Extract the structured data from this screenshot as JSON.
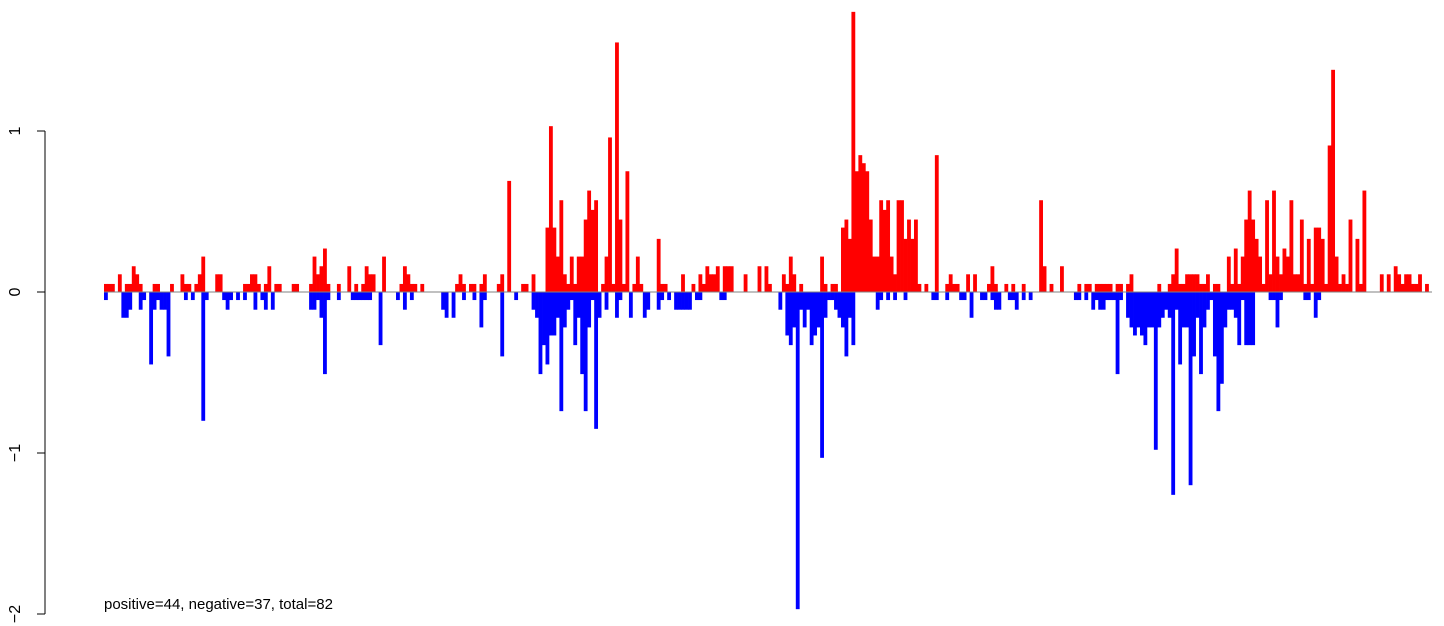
{
  "chart_data": {
    "type": "bar",
    "title": "",
    "xlabel": "",
    "ylabel": "",
    "ylim": [
      -2,
      1.75
    ],
    "yticks": [
      -2,
      -1,
      0,
      1
    ],
    "ytick_labels": [
      "−2",
      "−1",
      "0",
      "1"
    ],
    "annotation": "positive=44, negative=37, total=82",
    "series": [
      {
        "color": "#ff0000",
        "values": [
          0.05,
          0.05,
          0.05,
          0,
          0.11,
          0,
          0.05,
          0.05,
          0.16,
          0.11,
          0.05,
          0,
          0,
          0,
          0.05,
          0.05,
          0,
          0,
          0,
          0.05,
          0,
          0,
          0.11,
          0.05,
          0.05,
          0,
          0.05,
          0.11,
          0.22,
          0,
          0,
          0,
          0.11,
          0.11,
          0,
          0,
          0,
          0,
          0,
          0,
          0.05,
          0.05,
          0.11,
          0.11,
          0.05,
          0,
          0.05,
          0.16,
          0,
          0.05,
          0.05,
          0,
          0,
          0,
          0.05,
          0.05,
          0,
          0,
          0,
          0.05,
          0.22,
          0.11,
          0.16,
          0.27,
          0.05,
          0,
          0,
          0.05,
          0,
          0,
          0.16,
          0,
          0.05,
          0,
          0.05,
          0.16,
          0.11,
          0.11,
          0,
          0,
          0.22,
          0,
          0,
          0,
          0,
          0.05,
          0.16,
          0.11,
          0.05,
          0.05,
          0,
          0.05,
          0,
          0,
          0,
          0,
          0,
          0,
          0,
          0,
          0,
          0.05,
          0.11,
          0.05,
          0,
          0.05,
          0.05,
          0,
          0.05,
          0.11,
          0,
          0,
          0,
          0.05,
          0.11,
          0,
          0.69,
          0,
          0,
          0,
          0.05,
          0.05,
          0,
          0.11,
          0,
          0,
          0,
          0.4,
          1.03,
          0.4,
          0.22,
          0.57,
          0.11,
          0.05,
          0.22,
          0.05,
          0.22,
          0.22,
          0.45,
          0.63,
          0.51,
          0.57,
          0,
          0.05,
          0.22,
          0.96,
          0.05,
          1.55,
          0.45,
          0.05,
          0.75,
          0,
          0.05,
          0.22,
          0.05,
          0,
          0,
          0,
          0,
          0.33,
          0.05,
          0.05,
          0,
          0,
          0,
          0,
          0.11,
          0,
          0,
          0.05,
          0,
          0.11,
          0.05,
          0.16,
          0.11,
          0.11,
          0.16,
          0,
          0.16,
          0.16,
          0.16,
          0,
          0,
          0,
          0.11,
          0,
          0,
          0,
          0.16,
          0,
          0.16,
          0.05,
          0,
          0,
          0,
          0.11,
          0.05,
          0.22,
          0.11,
          0,
          0.05,
          0,
          0,
          0,
          0,
          0,
          0.22,
          0.05,
          0,
          0.05,
          0.05,
          0,
          0.4,
          0.45,
          0.33,
          1.74,
          0.75,
          0.85,
          0.8,
          0.75,
          0.45,
          0.22,
          0.22,
          0.57,
          0.51,
          0.57,
          0.22,
          0.11,
          0.57,
          0.57,
          0.33,
          0.45,
          0.33,
          0.45,
          0.05,
          0,
          0.05,
          0,
          0,
          0.85,
          0,
          0,
          0.05,
          0.11,
          0.05,
          0.05,
          0,
          0,
          0.11,
          0,
          0.11,
          0,
          0,
          0,
          0.05,
          0.16,
          0.05,
          0,
          0,
          0.05,
          0,
          0.05,
          0,
          0,
          0.05,
          0,
          0,
          0,
          0,
          0.57,
          0.16,
          0,
          0.05,
          0,
          0,
          0.16,
          0,
          0,
          0,
          0,
          0.05,
          0,
          0.05,
          0.05,
          0,
          0.05,
          0.05,
          0.05,
          0.05,
          0.05,
          0,
          0.05,
          0.05,
          0,
          0.05,
          0.11,
          0,
          0,
          0,
          0,
          0,
          0,
          0,
          0.05,
          0,
          0,
          0.05,
          0.11,
          0.27,
          0.05,
          0.05,
          0.11,
          0.11,
          0.11,
          0.11,
          0.05,
          0.05,
          0.11,
          0,
          0.05,
          0.05,
          0,
          0,
          0.22,
          0.05,
          0.27,
          0.05,
          0.22,
          0.45,
          0.63,
          0.45,
          0.33,
          0.22,
          0.05,
          0.57,
          0.11,
          0.63,
          0.22,
          0.11,
          0.27,
          0.22,
          0.57,
          0.11,
          0.11,
          0.45,
          0.05,
          0.33,
          0.05,
          0.4,
          0.4,
          0.33,
          0.05,
          0.91,
          1.38,
          0.22,
          0.05,
          0.11,
          0.05,
          0.45,
          0,
          0.33,
          0.05,
          0.63,
          0,
          0,
          0,
          0,
          0.11,
          0,
          0.11,
          0,
          0.16,
          0.11,
          0.05,
          0.11,
          0.11,
          0.05,
          0.05,
          0.11,
          0,
          0.05,
          0
        ]
      },
      {
        "color": "#0000ff",
        "values": [
          -0.05,
          0,
          0,
          0,
          0,
          -0.16,
          -0.16,
          -0.11,
          0,
          0,
          -0.11,
          -0.05,
          0,
          -0.45,
          -0.11,
          -0.05,
          -0.11,
          -0.11,
          -0.4,
          0,
          0,
          0,
          0,
          -0.05,
          0,
          -0.05,
          0,
          0,
          -0.8,
          -0.05,
          0,
          0,
          0,
          0,
          -0.05,
          -0.11,
          -0.05,
          0,
          -0.05,
          0,
          -0.05,
          0,
          0,
          -0.11,
          0,
          -0.05,
          -0.11,
          0,
          -0.11,
          0,
          0,
          0,
          0,
          0,
          0,
          0,
          0,
          0,
          0,
          -0.11,
          -0.11,
          -0.05,
          -0.16,
          -0.51,
          -0.05,
          0,
          0,
          -0.05,
          0,
          0,
          0,
          -0.05,
          -0.05,
          -0.05,
          -0.05,
          -0.05,
          -0.05,
          0,
          0,
          -0.33,
          0,
          0,
          0,
          0,
          -0.05,
          0,
          -0.11,
          0,
          -0.05,
          0,
          0,
          0,
          0,
          0,
          0,
          0,
          0,
          -0.11,
          -0.16,
          0,
          -0.16,
          0,
          0,
          -0.05,
          0,
          0,
          -0.05,
          0,
          -0.22,
          -0.05,
          0,
          0,
          0,
          0,
          -0.4,
          0,
          0,
          0,
          -0.05,
          0,
          0,
          0,
          0,
          -0.11,
          -0.16,
          -0.51,
          -0.33,
          -0.45,
          -0.27,
          -0.27,
          -0.16,
          -0.74,
          -0.22,
          -0.11,
          -0.05,
          -0.33,
          -0.16,
          -0.51,
          -0.74,
          -0.22,
          -0.05,
          -0.85,
          -0.16,
          0,
          -0.11,
          0,
          0,
          -0.16,
          -0.05,
          0,
          0,
          -0.16,
          0,
          0,
          0,
          -0.16,
          -0.11,
          0,
          0,
          -0.11,
          -0.05,
          0,
          -0.05,
          0,
          -0.11,
          -0.11,
          -0.11,
          -0.11,
          -0.11,
          0,
          -0.05,
          -0.05,
          0,
          0,
          0,
          0,
          0,
          -0.05,
          -0.05,
          0,
          0,
          0,
          0,
          0,
          0,
          0,
          0,
          0,
          0,
          0,
          0,
          0,
          0,
          0,
          -0.11,
          0,
          -0.27,
          -0.33,
          -0.22,
          -1.97,
          -0.11,
          -0.22,
          -0.11,
          -0.33,
          -0.27,
          -0.22,
          -1.03,
          -0.16,
          -0.05,
          -0.05,
          -0.11,
          -0.16,
          -0.22,
          -0.4,
          -0.16,
          -0.33,
          0,
          0,
          0,
          0,
          0,
          0,
          -0.11,
          -0.05,
          0,
          -0.05,
          0,
          -0.05,
          0,
          0,
          -0.05,
          0,
          0,
          0,
          0,
          0,
          0,
          0,
          -0.05,
          -0.05,
          0,
          0,
          -0.05,
          0,
          0,
          0,
          -0.05,
          -0.05,
          0,
          -0.16,
          0,
          0,
          -0.05,
          -0.05,
          0,
          -0.05,
          -0.11,
          -0.11,
          0,
          0,
          -0.05,
          -0.05,
          -0.11,
          0,
          -0.05,
          0,
          -0.05,
          0,
          0,
          0,
          0,
          0,
          0,
          0,
          0,
          0,
          0,
          0,
          0,
          -0.05,
          -0.05,
          0,
          -0.05,
          0,
          -0.11,
          -0.05,
          -0.11,
          -0.11,
          -0.05,
          -0.05,
          -0.05,
          -0.51,
          -0.05,
          0,
          -0.16,
          -0.22,
          -0.27,
          -0.22,
          -0.27,
          -0.33,
          -0.22,
          -0.22,
          -0.98,
          -0.22,
          -0.16,
          -0.11,
          -0.16,
          -1.26,
          -0.11,
          -0.45,
          -0.22,
          -0.22,
          -1.2,
          -0.4,
          -0.16,
          -0.51,
          -0.22,
          -0.11,
          -0.05,
          -0.4,
          -0.74,
          -0.57,
          -0.22,
          -0.11,
          -0.11,
          -0.16,
          -0.33,
          -0.05,
          -0.33,
          -0.33,
          -0.33,
          0,
          0,
          0,
          0,
          -0.05,
          -0.05,
          -0.22,
          -0.05,
          0,
          0,
          0,
          0,
          0,
          0,
          -0.05,
          -0.05,
          0,
          -0.16,
          -0.05
        ]
      }
    ]
  }
}
